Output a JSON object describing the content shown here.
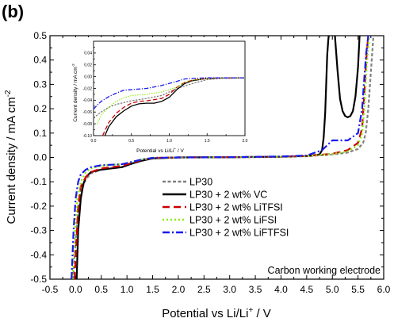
{
  "chart_data": {
    "type": "line",
    "panel_label": "(b)",
    "xlabel": "Potential vs Li/Li",
    "xlabel_sup": "+",
    "xlabel_unit": " / V",
    "ylabel": "Current density / mA cm",
    "ylabel_sup": "-2",
    "xlim": [
      -0.5,
      6.0
    ],
    "ylim": [
      -0.5,
      0.5
    ],
    "x_ticks": [
      "-0.5",
      "0.0",
      "0.5",
      "1.0",
      "1.5",
      "2.0",
      "2.5",
      "3.0",
      "3.5",
      "4.0",
      "4.5",
      "5.0",
      "5.5",
      "6.0"
    ],
    "y_ticks": [
      "-0.5",
      "-0.4",
      "-0.3",
      "-0.2",
      "-0.1",
      "0.0",
      "0.1",
      "0.2",
      "0.3",
      "0.4",
      "0.5"
    ],
    "grid": false,
    "legend_position": "center-right",
    "annotation": "Carbon working electrode",
    "series": [
      {
        "name": "LP30",
        "color": "#808080",
        "dash": "4,2.5",
        "x": [
          -0.05,
          0.0,
          0.05,
          0.1,
          0.2,
          0.3,
          0.5,
          0.7,
          0.9,
          1.1,
          1.3,
          1.5,
          2.0,
          3.0,
          4.0,
          4.5,
          5.0,
          5.3,
          5.5,
          5.6,
          5.65,
          5.7,
          5.75,
          5.8
        ],
        "y": [
          -0.5,
          -0.35,
          -0.22,
          -0.14,
          -0.09,
          -0.065,
          -0.05,
          -0.045,
          -0.04,
          -0.025,
          -0.012,
          -0.003,
          0.0,
          0.0,
          0.002,
          0.005,
          0.012,
          0.02,
          0.035,
          0.06,
          0.1,
          0.2,
          0.35,
          0.5
        ]
      },
      {
        "name": "LP30 + 2 wt% VC",
        "color": "#000000",
        "dash": "",
        "x": [
          0.02,
          0.05,
          0.1,
          0.15,
          0.2,
          0.3,
          0.5,
          0.7,
          0.9,
          1.1,
          1.3,
          1.5,
          2.0,
          3.0,
          4.0,
          4.5,
          4.75,
          4.8,
          4.83,
          4.86,
          4.88,
          4.9,
          4.92,
          4.93
        ],
        "y": [
          -0.5,
          -0.3,
          -0.17,
          -0.11,
          -0.08,
          -0.06,
          -0.05,
          -0.045,
          -0.04,
          -0.025,
          -0.013,
          -0.004,
          0.0,
          0.001,
          0.003,
          0.006,
          0.012,
          0.03,
          0.08,
          0.18,
          0.3,
          0.42,
          0.48,
          0.5
        ]
      },
      {
        "name": "LP30 + 2 wt% LiTFSI",
        "color": "#cc0000",
        "dash": "9,5",
        "x": [
          -0.02,
          0.02,
          0.05,
          0.1,
          0.2,
          0.3,
          0.5,
          0.7,
          0.9,
          1.1,
          1.3,
          1.5,
          2.0,
          3.0,
          4.0,
          4.5,
          5.0,
          5.3,
          5.5,
          5.58,
          5.62,
          5.66,
          5.7
        ],
        "y": [
          -0.5,
          -0.33,
          -0.2,
          -0.12,
          -0.08,
          -0.06,
          -0.045,
          -0.04,
          -0.035,
          -0.022,
          -0.01,
          -0.002,
          0.0,
          0.001,
          0.003,
          0.006,
          0.015,
          0.03,
          0.06,
          0.12,
          0.25,
          0.4,
          0.5
        ]
      },
      {
        "name": "LP30 + 2 wt% LiFSI",
        "color": "#88ee00",
        "dash": "2,3",
        "x": [
          -0.06,
          -0.02,
          0.03,
          0.1,
          0.2,
          0.3,
          0.5,
          0.7,
          0.9,
          1.1,
          1.3,
          1.5,
          2.0,
          3.0,
          4.0,
          4.5,
          5.0,
          5.3,
          5.5,
          5.58,
          5.63,
          5.67,
          5.72
        ],
        "y": [
          -0.5,
          -0.33,
          -0.18,
          -0.1,
          -0.06,
          -0.045,
          -0.035,
          -0.03,
          -0.028,
          -0.018,
          -0.008,
          -0.002,
          0.0,
          0.001,
          0.003,
          0.006,
          0.014,
          0.025,
          0.05,
          0.1,
          0.22,
          0.38,
          0.5
        ]
      },
      {
        "name": "LP30 + 2 wt% LiFTFSI",
        "color": "#1a1aee",
        "dash": "9,3,2,3",
        "x": [
          -0.08,
          -0.04,
          0.0,
          0.05,
          0.1,
          0.2,
          0.3,
          0.5,
          0.7,
          0.9,
          1.1,
          1.3,
          1.5,
          2.0,
          3.0,
          4.0,
          4.5,
          4.8,
          5.0,
          5.3,
          5.5,
          5.58,
          5.62,
          5.66,
          5.7
        ],
        "y": [
          -0.5,
          -0.3,
          -0.17,
          -0.1,
          -0.07,
          -0.05,
          -0.04,
          -0.032,
          -0.03,
          -0.028,
          -0.018,
          -0.008,
          -0.002,
          0.0,
          0.001,
          0.004,
          0.008,
          0.03,
          0.07,
          0.07,
          0.1,
          0.2,
          0.32,
          0.43,
          0.5
        ]
      }
    ],
    "vc_extra": {
      "x": [
        5.05,
        5.1,
        5.15,
        5.2,
        5.25,
        5.3,
        5.35,
        5.4,
        5.45,
        5.5,
        5.53
      ],
      "y": [
        0.5,
        0.36,
        0.24,
        0.19,
        0.17,
        0.165,
        0.17,
        0.19,
        0.25,
        0.37,
        0.5
      ]
    },
    "inset": {
      "xlabel": "Potential vs Li/Li",
      "xlabel_sup": "+",
      "xlabel_unit": " / V",
      "ylabel": "Current density / mA cm",
      "ylabel_sup": "-2",
      "xlim": [
        0.0,
        2.0
      ],
      "ylim": [
        -0.1,
        0.06
      ],
      "x_ticks": [
        "0.0",
        "0.5",
        "1.0",
        "1.5",
        "2.0"
      ],
      "y_ticks": [
        "-0.10",
        "-0.08",
        "-0.06",
        "-0.04",
        "-0.02",
        "0.00",
        "0.02",
        "0.04"
      ],
      "series": [
        {
          "name": "LP30",
          "x": [
            0.0,
            0.1,
            0.2,
            0.3,
            0.5,
            0.7,
            0.9,
            1.1,
            1.3,
            1.5,
            1.7,
            2.0
          ],
          "y": [
            -0.07,
            -0.06,
            -0.052,
            -0.047,
            -0.041,
            -0.037,
            -0.032,
            -0.02,
            -0.012,
            -0.005,
            -0.003,
            -0.002
          ]
        },
        {
          "name": "LP30 + 2 wt% VC",
          "x": [
            0.15,
            0.2,
            0.3,
            0.4,
            0.5,
            0.6,
            0.7,
            0.8,
            0.9,
            1.0,
            1.1,
            1.2,
            1.3,
            1.5,
            1.7,
            2.0
          ],
          "y": [
            -0.1,
            -0.085,
            -0.068,
            -0.058,
            -0.05,
            -0.046,
            -0.045,
            -0.045,
            -0.042,
            -0.035,
            -0.022,
            -0.012,
            -0.007,
            -0.003,
            -0.002,
            -0.002
          ]
        },
        {
          "name": "LP30 + 2 wt% LiTFSI",
          "x": [
            0.12,
            0.2,
            0.3,
            0.4,
            0.5,
            0.6,
            0.7,
            0.9,
            1.0,
            1.1,
            1.2,
            1.3,
            1.5,
            1.7,
            2.0
          ],
          "y": [
            -0.1,
            -0.078,
            -0.062,
            -0.052,
            -0.045,
            -0.042,
            -0.041,
            -0.037,
            -0.03,
            -0.018,
            -0.01,
            -0.006,
            -0.003,
            -0.002,
            -0.002
          ]
        },
        {
          "name": "LP30 + 2 wt% LiFSI",
          "x": [
            0.05,
            0.1,
            0.2,
            0.3,
            0.4,
            0.5,
            0.7,
            0.9,
            1.1,
            1.2,
            1.3,
            1.5,
            1.7,
            2.0
          ],
          "y": [
            -0.08,
            -0.065,
            -0.052,
            -0.042,
            -0.036,
            -0.032,
            -0.03,
            -0.026,
            -0.018,
            -0.01,
            -0.006,
            -0.003,
            -0.002,
            -0.002
          ]
        },
        {
          "name": "LP30 + 2 wt% LiFTFSI",
          "x": [
            0.0,
            0.05,
            0.1,
            0.2,
            0.3,
            0.4,
            0.5,
            0.7,
            0.9,
            1.1,
            1.2,
            1.3,
            1.5,
            1.7,
            2.0
          ],
          "y": [
            -0.055,
            -0.048,
            -0.042,
            -0.034,
            -0.028,
            -0.023,
            -0.022,
            -0.02,
            -0.015,
            -0.008,
            -0.004,
            -0.003,
            -0.002,
            -0.002,
            -0.002
          ]
        }
      ]
    }
  }
}
